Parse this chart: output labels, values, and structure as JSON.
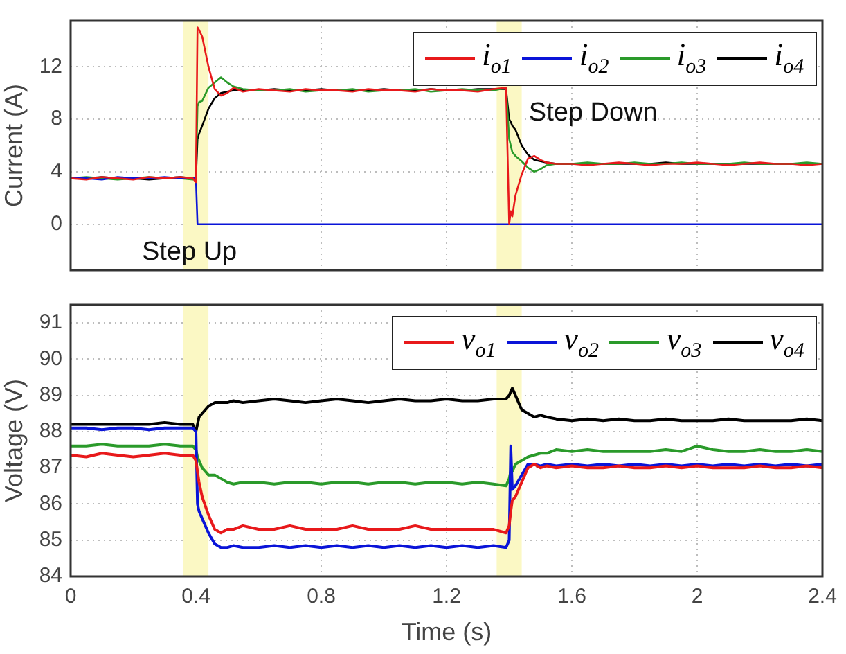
{
  "chart_data": [
    {
      "type": "line",
      "ylabel": "Current (A)",
      "tick_labels": "y",
      "grid": true,
      "legend": "top right",
      "xlim": [
        0,
        2.4
      ],
      "xticks": [
        0,
        0.4,
        0.8,
        1.2,
        1.6,
        2,
        2.4
      ],
      "ylim": [
        -3.5,
        15.5
      ],
      "yticks": [
        0,
        4,
        8,
        12
      ],
      "x": [
        0,
        0.05,
        0.1,
        0.15,
        0.2,
        0.25,
        0.3,
        0.35,
        0.39,
        0.4,
        0.405,
        0.41,
        0.42,
        0.44,
        0.46,
        0.48,
        0.5,
        0.52,
        0.55,
        0.6,
        0.65,
        0.7,
        0.75,
        0.8,
        0.85,
        0.9,
        0.95,
        1.0,
        1.05,
        1.1,
        1.15,
        1.2,
        1.25,
        1.3,
        1.35,
        1.39,
        1.4,
        1.405,
        1.41,
        1.42,
        1.44,
        1.46,
        1.48,
        1.5,
        1.52,
        1.55,
        1.6,
        1.65,
        1.7,
        1.75,
        1.8,
        1.85,
        1.9,
        1.95,
        2.0,
        2.05,
        2.1,
        2.15,
        2.2,
        2.25,
        2.3,
        2.35,
        2.4
      ],
      "bands": [
        {
          "axis": "x",
          "from": 0.36,
          "to": 0.44,
          "color": "#fbf8c4"
        },
        {
          "axis": "x",
          "from": 1.36,
          "to": 1.44,
          "color": "#fbf8c4"
        }
      ],
      "annotations": [
        "Step Up",
        "Step Down"
      ],
      "series": [
        {
          "name": "i$_{o1}$",
          "color": "#e8191b",
          "values": [
            3.5,
            3.4,
            3.6,
            3.5,
            3.4,
            3.6,
            3.5,
            3.6,
            3.5,
            3.2,
            15.0,
            14.8,
            14.3,
            12.0,
            10.3,
            9.8,
            10.0,
            10.4,
            10.1,
            10.3,
            10.2,
            10.1,
            10.3,
            10.2,
            10.2,
            10.1,
            10.3,
            10.2,
            10.2,
            10.1,
            10.3,
            10.2,
            10.2,
            10.1,
            10.3,
            10.4,
            0.0,
            1.0,
            0.6,
            2.2,
            3.8,
            5.0,
            5.2,
            4.9,
            4.7,
            4.6,
            4.6,
            4.5,
            4.6,
            4.7,
            4.6,
            4.5,
            4.6,
            4.6,
            4.7,
            4.6,
            4.5,
            4.6,
            4.7,
            4.6,
            4.6,
            4.5,
            4.6
          ]
        },
        {
          "name": "i$_{o2}$",
          "color": "#0a14d8",
          "values": [
            3.5,
            3.5,
            3.4,
            3.6,
            3.5,
            3.5,
            3.6,
            3.5,
            3.5,
            3.5,
            0,
            0,
            0,
            0,
            0,
            0,
            0,
            0,
            0,
            0,
            0,
            0,
            0,
            0,
            0,
            0,
            0,
            0,
            0,
            0,
            0,
            0,
            0,
            0,
            0,
            0,
            0,
            0,
            0,
            0,
            0,
            0,
            0,
            0,
            0,
            0,
            0,
            0,
            0,
            0,
            0,
            0,
            0,
            0,
            0,
            0,
            0,
            0,
            0,
            0,
            0,
            0,
            0
          ]
        },
        {
          "name": "i$_{o3}$",
          "color": "#2a9a2a",
          "values": [
            3.5,
            3.6,
            3.5,
            3.4,
            3.5,
            3.6,
            3.5,
            3.5,
            3.4,
            3.6,
            9.0,
            9.3,
            9.4,
            10.4,
            10.8,
            11.2,
            10.8,
            10.5,
            10.3,
            10.2,
            10.2,
            10.3,
            10.1,
            10.2,
            10.2,
            10.3,
            10.1,
            10.2,
            10.2,
            10.3,
            10.1,
            10.2,
            10.3,
            10.2,
            10.2,
            10.4,
            6.5,
            6.0,
            5.5,
            5.2,
            4.8,
            4.3,
            4.0,
            4.2,
            4.5,
            4.6,
            4.6,
            4.7,
            4.6,
            4.6,
            4.7,
            4.6,
            4.6,
            4.7,
            4.6,
            4.6,
            4.6,
            4.7,
            4.6,
            4.6,
            4.6,
            4.7,
            4.6
          ]
        },
        {
          "name": "i$_{o4}$",
          "color": "#000000",
          "values": [
            3.5,
            3.5,
            3.6,
            3.5,
            3.5,
            3.4,
            3.5,
            3.6,
            3.5,
            3.5,
            6.5,
            6.9,
            7.5,
            8.8,
            9.6,
            10.0,
            10.1,
            10.2,
            10.2,
            10.2,
            10.3,
            10.2,
            10.2,
            10.3,
            10.2,
            10.2,
            10.2,
            10.3,
            10.2,
            10.2,
            10.3,
            10.2,
            10.2,
            10.3,
            10.3,
            10.3,
            8.0,
            7.8,
            7.5,
            7.2,
            6.0,
            5.3,
            4.9,
            4.8,
            4.7,
            4.6,
            4.6,
            4.6,
            4.6,
            4.6,
            4.6,
            4.6,
            4.7,
            4.6,
            4.6,
            4.6,
            4.6,
            4.6,
            4.6,
            4.6,
            4.6,
            4.6,
            4.6
          ]
        }
      ]
    },
    {
      "type": "line",
      "ylabel": "Voltage (V)",
      "xlabel": "Time (s)",
      "grid": true,
      "legend": "top right",
      "xlim": [
        0,
        2.4
      ],
      "xticks": [
        0,
        0.4,
        0.8,
        1.2,
        1.6,
        2,
        2.4
      ],
      "ylim": [
        84,
        91.5
      ],
      "yticks": [
        84,
        85,
        86,
        87,
        88,
        89,
        90,
        91
      ],
      "x": [
        0,
        0.05,
        0.1,
        0.15,
        0.2,
        0.25,
        0.3,
        0.35,
        0.39,
        0.4,
        0.405,
        0.41,
        0.42,
        0.44,
        0.46,
        0.48,
        0.5,
        0.52,
        0.55,
        0.6,
        0.65,
        0.7,
        0.75,
        0.8,
        0.85,
        0.9,
        0.95,
        1.0,
        1.05,
        1.1,
        1.15,
        1.2,
        1.25,
        1.3,
        1.35,
        1.39,
        1.4,
        1.405,
        1.41,
        1.42,
        1.44,
        1.46,
        1.48,
        1.5,
        1.52,
        1.55,
        1.6,
        1.65,
        1.7,
        1.75,
        1.8,
        1.85,
        1.9,
        1.95,
        2.0,
        2.05,
        2.1,
        2.15,
        2.2,
        2.25,
        2.3,
        2.35,
        2.4
      ],
      "bands": [
        {
          "axis": "x",
          "from": 0.36,
          "to": 0.44,
          "color": "#fbf8c4"
        },
        {
          "axis": "x",
          "from": 1.36,
          "to": 1.44,
          "color": "#fbf8c4"
        }
      ],
      "series": [
        {
          "name": "v$_{o1}$",
          "color": "#e8191b",
          "values": [
            87.35,
            87.3,
            87.4,
            87.35,
            87.3,
            87.35,
            87.4,
            87.35,
            87.35,
            87.2,
            86.9,
            86.6,
            86.2,
            85.7,
            85.3,
            85.2,
            85.3,
            85.3,
            85.4,
            85.3,
            85.3,
            85.4,
            85.3,
            85.3,
            85.3,
            85.4,
            85.3,
            85.3,
            85.3,
            85.4,
            85.3,
            85.3,
            85.3,
            85.3,
            85.3,
            85.2,
            85.4,
            85.8,
            86.1,
            86.2,
            86.6,
            87.0,
            87.1,
            87.0,
            87.05,
            87.0,
            87.05,
            87.0,
            87.0,
            87.05,
            87.0,
            87.0,
            87.05,
            87.0,
            87.05,
            87.0,
            87.0,
            87.0,
            87.05,
            87.0,
            87.0,
            87.05,
            87.0
          ]
        },
        {
          "name": "v$_{o2}$",
          "color": "#0a14d8",
          "values": [
            88.1,
            88.1,
            88.05,
            88.1,
            88.1,
            88.05,
            88.1,
            88.1,
            88.1,
            88.0,
            86.0,
            85.8,
            85.6,
            85.2,
            84.9,
            84.8,
            84.8,
            84.85,
            84.8,
            84.8,
            84.85,
            84.8,
            84.85,
            84.8,
            84.85,
            84.8,
            84.85,
            84.8,
            84.85,
            84.8,
            84.85,
            84.8,
            84.85,
            84.8,
            84.85,
            84.8,
            85.0,
            87.6,
            86.4,
            86.5,
            86.8,
            87.1,
            87.1,
            87.05,
            87.1,
            87.05,
            87.1,
            87.05,
            87.1,
            87.05,
            87.1,
            87.05,
            87.1,
            87.05,
            87.1,
            87.05,
            87.1,
            87.05,
            87.1,
            87.05,
            87.1,
            87.05,
            87.1
          ]
        },
        {
          "name": "v$_{o3}$",
          "color": "#2a9a2a",
          "values": [
            87.6,
            87.6,
            87.65,
            87.6,
            87.6,
            87.6,
            87.65,
            87.6,
            87.6,
            87.5,
            87.3,
            87.2,
            87.0,
            86.8,
            86.8,
            86.7,
            86.6,
            86.55,
            86.6,
            86.6,
            86.55,
            86.6,
            86.6,
            86.55,
            86.6,
            86.6,
            86.55,
            86.6,
            86.6,
            86.55,
            86.6,
            86.6,
            86.55,
            86.6,
            86.55,
            86.5,
            86.7,
            86.9,
            86.9,
            87.1,
            87.2,
            87.3,
            87.35,
            87.4,
            87.4,
            87.5,
            87.45,
            87.5,
            87.45,
            87.45,
            87.45,
            87.45,
            87.5,
            87.45,
            87.6,
            87.5,
            87.45,
            87.45,
            87.5,
            87.45,
            87.45,
            87.5,
            87.45
          ]
        },
        {
          "name": "v$_{o4}$",
          "color": "#000000",
          "values": [
            88.2,
            88.2,
            88.2,
            88.2,
            88.2,
            88.2,
            88.25,
            88.2,
            88.2,
            88.0,
            88.2,
            88.4,
            88.5,
            88.7,
            88.8,
            88.8,
            88.8,
            88.85,
            88.8,
            88.85,
            88.9,
            88.85,
            88.8,
            88.85,
            88.9,
            88.85,
            88.8,
            88.85,
            88.9,
            88.85,
            88.85,
            88.9,
            88.85,
            88.85,
            88.9,
            88.9,
            89.0,
            89.1,
            89.2,
            89.0,
            88.6,
            88.5,
            88.4,
            88.45,
            88.4,
            88.35,
            88.3,
            88.35,
            88.3,
            88.35,
            88.3,
            88.3,
            88.35,
            88.3,
            88.3,
            88.3,
            88.35,
            88.3,
            88.3,
            88.3,
            88.3,
            88.35,
            88.3
          ]
        }
      ]
    }
  ]
}
